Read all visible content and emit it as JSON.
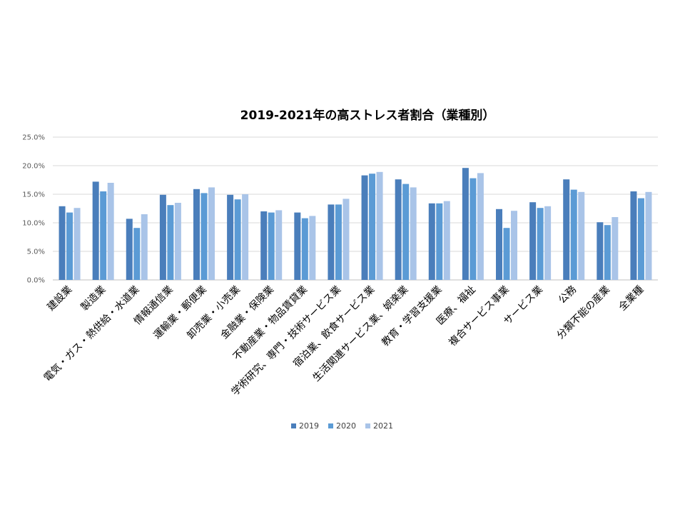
{
  "chart_data": {
    "type": "bar",
    "title": "2019-2021年の高ストレス者割合（業種別）",
    "xlabel": "",
    "ylabel": "",
    "ylim": [
      0,
      25
    ],
    "yticks": [
      "0.0%",
      "5.0%",
      "10.0%",
      "15.0%",
      "20.0%",
      "25.0%"
    ],
    "grid": true,
    "legend_position": "bottom",
    "categories": [
      "建設業",
      "製造業",
      "電気・ガス・熱供給・水道業",
      "情報通信業",
      "運輸業・郵便業",
      "卸売業・小売業",
      "金融業・保険業",
      "不動産業・物品賃貸業",
      "学術研究、専門・技術サービス業",
      "宿泊業、飲食サービス業",
      "生活関連サービス業、娯楽業",
      "教育・学習支援業",
      "医療、福祉",
      "複合サービス事業",
      "サービス業",
      "公務",
      "分類不能の産業",
      "全業種"
    ],
    "series": [
      {
        "name": "2019",
        "color": "#4a7ebb",
        "values": [
          12.9,
          17.2,
          10.7,
          14.9,
          15.9,
          14.9,
          12.0,
          11.8,
          13.2,
          18.3,
          17.6,
          13.4,
          19.6,
          12.4,
          13.6,
          17.6,
          10.1,
          15.5
        ]
      },
      {
        "name": "2020",
        "color": "#5b9bd5",
        "values": [
          11.8,
          15.5,
          9.1,
          13.1,
          15.2,
          14.1,
          11.8,
          10.8,
          13.2,
          18.6,
          16.8,
          13.4,
          17.8,
          9.1,
          12.6,
          15.8,
          9.6,
          14.3
        ]
      },
      {
        "name": "2021",
        "color": "#a9c4e8",
        "values": [
          12.6,
          17.0,
          11.5,
          13.5,
          16.2,
          15.0,
          12.2,
          11.2,
          14.2,
          18.9,
          16.2,
          13.8,
          18.7,
          12.1,
          12.9,
          15.4,
          11.0,
          15.4
        ]
      }
    ]
  }
}
